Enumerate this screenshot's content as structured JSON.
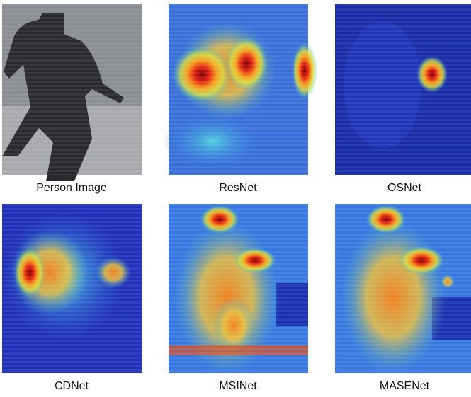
{
  "panels": [
    {
      "caption": "Person Image"
    },
    {
      "caption": "ResNet"
    },
    {
      "caption": "OSNet"
    },
    {
      "caption": "CDNet"
    },
    {
      "caption": "MSINet"
    },
    {
      "caption": "MASENet"
    }
  ]
}
